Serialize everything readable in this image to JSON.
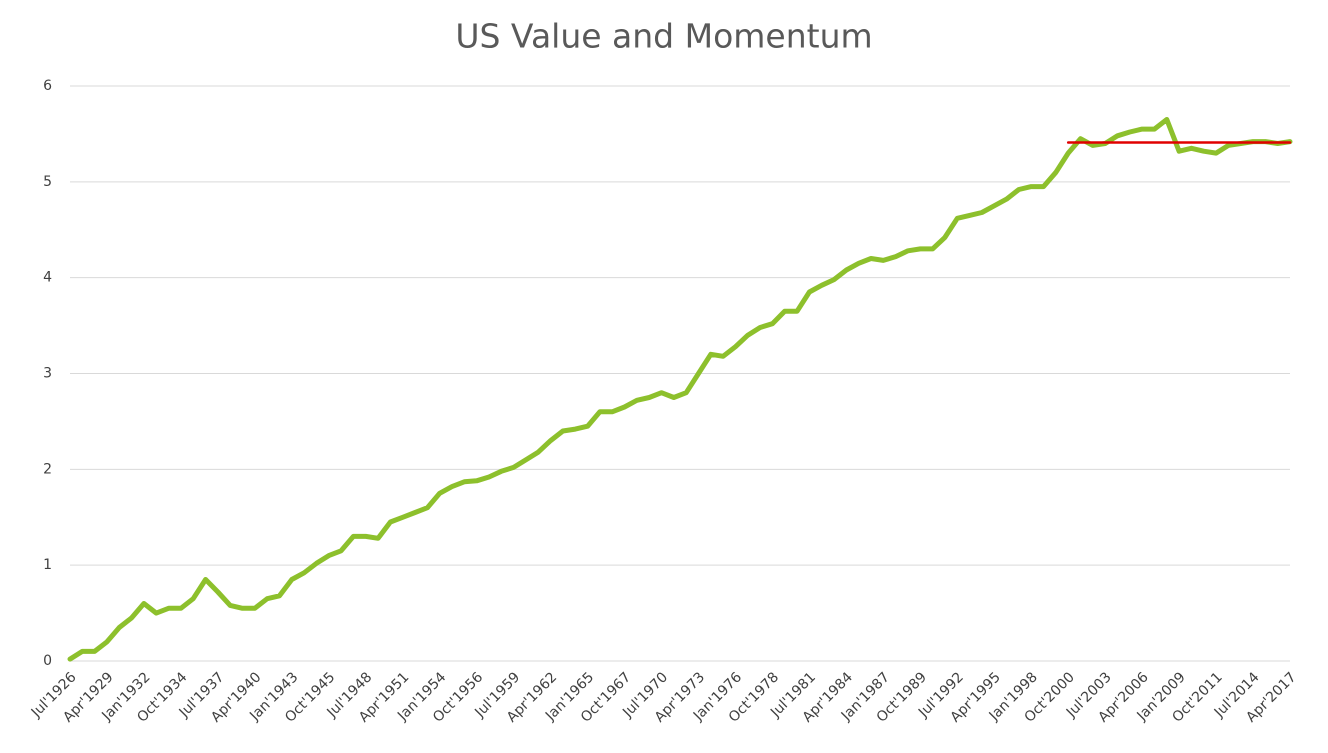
{
  "chart_data": {
    "type": "line",
    "title": "US Value and Momentum",
    "categories": [
      "Jul'1926",
      null,
      null,
      "Apr'1929",
      null,
      null,
      "Jan'1932",
      null,
      null,
      "Oct'1934",
      null,
      null,
      "Jul'1937",
      null,
      null,
      "Apr'1940",
      null,
      null,
      "Jan'1943",
      null,
      null,
      "Oct'1945",
      null,
      null,
      "Jul'1948",
      null,
      null,
      "Apr'1951",
      null,
      null,
      "Jan'1954",
      null,
      null,
      "Oct'1956",
      null,
      null,
      "Jul'1959",
      null,
      null,
      "Apr'1962",
      null,
      null,
      "Jan'1965",
      null,
      null,
      "Oct'1967",
      null,
      null,
      "Jul'1970",
      null,
      null,
      "Apr'1973",
      null,
      null,
      "Jan'1976",
      null,
      null,
      "Oct'1978",
      null,
      null,
      "Jul'1981",
      null,
      null,
      "Apr'1984",
      null,
      null,
      "Jan'1987",
      null,
      null,
      "Oct'1989",
      null,
      null,
      "Jul'1992",
      null,
      null,
      "Apr'1995",
      null,
      null,
      "Jan'1998",
      null,
      null,
      "Oct'2000",
      null,
      null,
      "Jul'2003",
      null,
      null,
      "Apr'2006",
      null,
      null,
      "Jan'2009",
      null,
      null,
      "Oct'2011",
      null,
      null,
      "Jul'2014",
      null,
      null,
      "Apr'2017"
    ],
    "series": [
      {
        "color": "#8dc02c",
        "values": [
          0.02,
          0.1,
          0.1,
          0.2,
          0.35,
          0.45,
          0.6,
          0.5,
          0.55,
          0.55,
          0.65,
          0.85,
          0.72,
          0.58,
          0.55,
          0.55,
          0.65,
          0.68,
          0.85,
          0.92,
          1.02,
          1.1,
          1.15,
          1.3,
          1.3,
          1.28,
          1.45,
          1.5,
          1.55,
          1.6,
          1.75,
          1.82,
          1.87,
          1.88,
          1.92,
          1.98,
          2.02,
          2.1,
          2.18,
          2.3,
          2.4,
          2.42,
          2.45,
          2.6,
          2.6,
          2.65,
          2.72,
          2.75,
          2.8,
          2.75,
          2.8,
          3.0,
          3.2,
          3.18,
          3.28,
          3.4,
          3.48,
          3.52,
          3.65,
          3.65,
          3.85,
          3.92,
          3.98,
          4.08,
          4.15,
          4.2,
          4.18,
          4.22,
          4.28,
          4.3,
          4.3,
          4.42,
          4.62,
          4.65,
          4.68,
          4.75,
          4.82,
          4.92,
          4.95,
          4.95,
          5.1,
          5.3,
          5.45,
          5.38,
          5.4,
          5.48,
          5.52,
          5.55,
          5.55,
          5.65,
          5.32,
          5.35,
          5.32,
          5.3,
          5.38,
          5.4,
          5.42,
          5.42,
          5.4,
          5.42
        ]
      },
      {
        "color": "#e00000",
        "values": [
          null,
          null,
          null,
          null,
          null,
          null,
          null,
          null,
          null,
          null,
          null,
          null,
          null,
          null,
          null,
          null,
          null,
          null,
          null,
          null,
          null,
          null,
          null,
          null,
          null,
          null,
          null,
          null,
          null,
          null,
          null,
          null,
          null,
          null,
          null,
          null,
          null,
          null,
          null,
          null,
          null,
          null,
          null,
          null,
          null,
          null,
          null,
          null,
          null,
          null,
          null,
          null,
          null,
          null,
          null,
          null,
          null,
          null,
          null,
          null,
          null,
          null,
          null,
          null,
          null,
          null,
          null,
          null,
          null,
          null,
          null,
          null,
          null,
          null,
          null,
          null,
          null,
          null,
          null,
          null,
          null,
          5.41,
          5.41,
          5.41,
          5.41,
          5.41,
          5.41,
          5.41,
          5.41,
          5.41,
          5.41,
          5.41,
          5.41,
          5.41,
          5.41,
          5.41,
          5.41,
          5.41,
          5.41,
          5.41
        ]
      }
    ],
    "ylim": [
      0,
      6
    ],
    "yticks": [
      0,
      1,
      2,
      3,
      4,
      5,
      6
    ],
    "grid": true
  }
}
